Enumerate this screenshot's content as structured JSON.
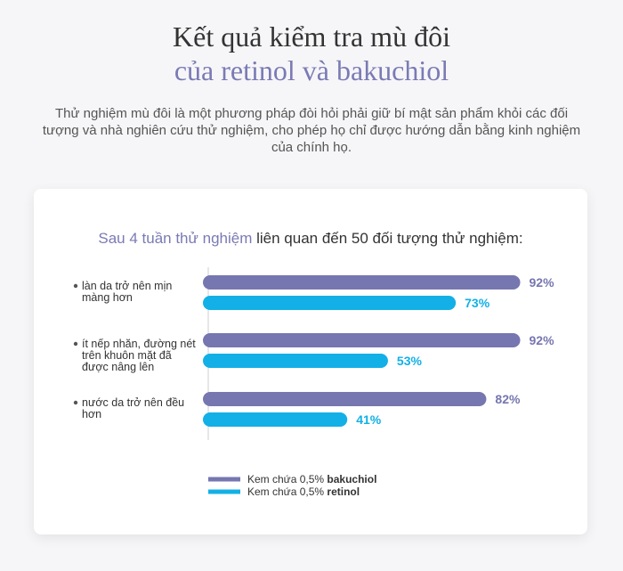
{
  "header": {
    "title_line1": "Kết quả kiểm tra mù đôi",
    "title_line2": "của retinol và bakuchiol",
    "intro": "Thử nghiệm mù đôi là một phương pháp đòi hỏi phải giữ bí mật sản phẩm khỏi các đối tượng và nhà nghiên cứu thử nghiệm, cho phép họ chỉ được hướng dẫn bằng kinh nghiệm của chính họ."
  },
  "chart_data": {
    "type": "bar",
    "orientation": "horizontal",
    "title_highlight": "Sau 4 tuần thử nghiệm",
    "title_rest": " liên quan đến 50 đối tượng thử nghiệm:",
    "categories": [
      [
        "làn da trở nên mịn",
        "màng hơn"
      ],
      [
        "ít nếp nhăn, đường nét",
        "trên khuôn mặt đã",
        "được nâng lên"
      ],
      [
        "nước da trở nên đều",
        "hơn"
      ]
    ],
    "series": [
      {
        "name_prefix": "Kem chứa 0,5% ",
        "name_bold": "bakuchiol",
        "color": "#7676b0",
        "values": [
          92,
          92,
          82
        ],
        "labels": [
          "92%",
          "92%",
          "82%"
        ]
      },
      {
        "name_prefix": "Kem chứa 0,5% ",
        "name_bold": "retinol",
        "color": "#12b0e6",
        "values": [
          73,
          53,
          41
        ],
        "labels": [
          "73%",
          "53%",
          "41%"
        ]
      }
    ],
    "xlim": [
      0,
      100
    ],
    "grid": false,
    "legend_position": "bottom-left"
  }
}
